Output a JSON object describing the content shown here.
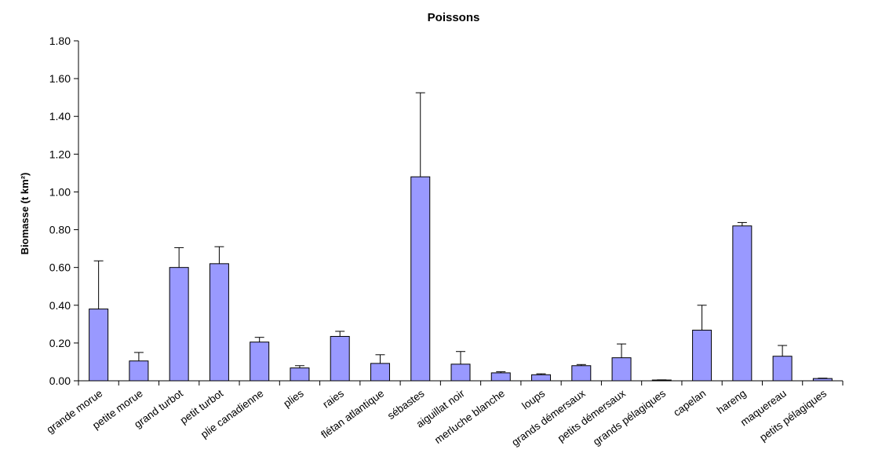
{
  "chart_data": {
    "type": "bar",
    "title": "Poissons",
    "xlabel": "",
    "ylabel": "Biomasse (t km²)",
    "ylim": [
      0,
      1.8
    ],
    "yticks": [
      "0.00",
      "0.20",
      "0.40",
      "0.60",
      "0.80",
      "1.00",
      "1.20",
      "1.40",
      "1.60",
      "1.80"
    ],
    "grid": false,
    "legend": "none",
    "bar_color": "#9999ff",
    "categories": [
      "grande morue",
      "petite morue",
      "grand turbot",
      "petit turbot",
      "plie canadienne",
      "plies",
      "raies",
      "flétan atlantique",
      "sébastes",
      "aiguillat noir",
      "merluche blanche",
      "loups",
      "grands démersaux",
      "petits démersaux",
      "grands pélagiques",
      "capelan",
      "hareng",
      "maquereau",
      "petits pélagiques"
    ],
    "values": [
      0.38,
      0.105,
      0.6,
      0.62,
      0.205,
      0.068,
      0.235,
      0.092,
      1.08,
      0.088,
      0.042,
      0.032,
      0.08,
      0.122,
      0.004,
      0.268,
      0.82,
      0.13,
      0.012
    ],
    "error_upper": [
      0.635,
      0.15,
      0.705,
      0.71,
      0.23,
      0.08,
      0.262,
      0.138,
      1.525,
      0.155,
      0.048,
      0.037,
      0.086,
      0.195,
      0.005,
      0.4,
      0.838,
      0.187,
      0.014
    ]
  }
}
